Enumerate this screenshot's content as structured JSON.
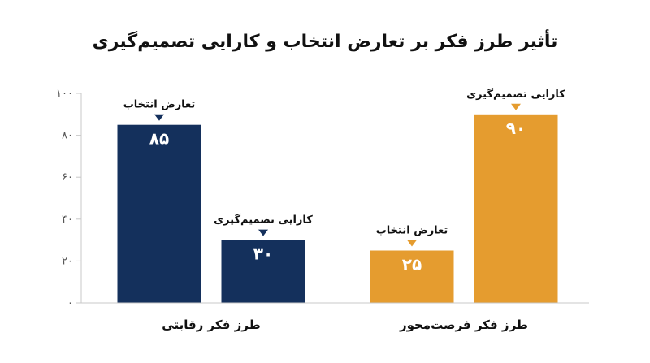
{
  "chart_data": {
    "type": "bar",
    "title": "تأثیر طرز فکر بر تعارض انتخاب و کارایی تصمیم‌گیری",
    "xlabel": "",
    "ylabel": "",
    "ylim": [
      0,
      100
    ],
    "yticks": [
      "۰",
      "۲۰",
      "۴۰",
      "۶۰",
      "۸۰",
      "۱۰۰"
    ],
    "grid": false,
    "legend": "none",
    "groups": [
      {
        "category": "طرز فکر رقابتی",
        "color": "#14305c",
        "bars": [
          {
            "label": "تعارض انتخاب",
            "value": 85,
            "value_label": "۸۵"
          },
          {
            "label": "کارایی تصمیم‌گیری",
            "value": 30,
            "value_label": "۳۰"
          }
        ]
      },
      {
        "category": "طرز فکر فرصت‌محور",
        "color": "#e59c2f",
        "bars": [
          {
            "label": "تعارض انتخاب",
            "value": 25,
            "value_label": "۲۵"
          },
          {
            "label": "کارایی تصمیم‌گیری",
            "value": 90,
            "value_label": "۹۰"
          }
        ]
      }
    ]
  }
}
